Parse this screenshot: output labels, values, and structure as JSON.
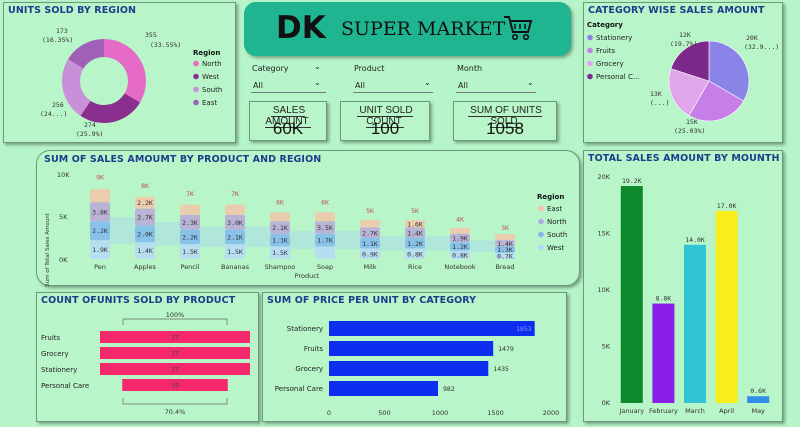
{
  "header": {
    "logo": "DK",
    "title": "SUPER MARKET",
    "cart": "cart-icon"
  },
  "slicers": [
    {
      "label": "Category",
      "value": "All"
    },
    {
      "label": "Product",
      "value": "All"
    },
    {
      "label": "Month",
      "value": "All"
    }
  ],
  "kpis": [
    {
      "label": "SALES AMOUNT",
      "value": "60K"
    },
    {
      "label": "UNIT SOLD COUNT",
      "value": "100"
    },
    {
      "label": "SUM OF UNITS SOLD",
      "value": "1058"
    }
  ],
  "region_donut": {
    "title": "UNITS SOLD BY REGION",
    "legend_title": "Region",
    "labels": {
      "north": "355",
      "north_pct": "(33.55%)",
      "west": "274",
      "west_pct": "(25.9%)",
      "south": "256",
      "south_pct": "(24...)",
      "east": "173",
      "east_pct": "(16.35%)"
    },
    "chart_data": {
      "type": "pie",
      "categories": [
        "North",
        "West",
        "South",
        "East"
      ],
      "values": [
        355,
        274,
        256,
        173
      ],
      "colors": [
        "#e56bc6",
        "#8b2f8f",
        "#c790d8",
        "#a060b8"
      ]
    }
  },
  "category_pie": {
    "title": "CATEGORY WISE SALES AMOUNT",
    "legend_title": "Category",
    "labels": {
      "stationery": "20K",
      "stationery_pct": "(32.9...)",
      "fruits": "15K",
      "fruits_pct": "(25.03%)",
      "grocery": "13K",
      "grocery_pct": "(...)",
      "personal": "12K",
      "personal_pct": "(19.7%)"
    },
    "chart_data": {
      "type": "pie",
      "categories": [
        "Stationery",
        "Fruits",
        "Grocery",
        "Personal C..."
      ],
      "values": [
        20,
        15,
        13,
        12
      ],
      "colors": [
        "#8a84e8",
        "#c67fe8",
        "#e0a6ea",
        "#7b2a8c"
      ]
    }
  },
  "ribbon": {
    "title": "SUM OF SALES AMOUMT BY PRODUCT AND REGION",
    "ylabel": "Sum of Total Sales Amount",
    "xlabel": "Product",
    "yticks": [
      "10K",
      "5K",
      "0K"
    ],
    "legend_title": "Region",
    "legend": [
      "East",
      "North",
      "South",
      "West"
    ],
    "colors": {
      "East": "#f2c6a8",
      "North": "#b8a8d8",
      "South": "#7fb8ef",
      "West": "#b6d8f7"
    },
    "chart_data": {
      "type": "bar",
      "categories": [
        "Pen",
        "Apples",
        "Pencil",
        "Bananas",
        "Shampoo",
        "Soap",
        "Milk",
        "Rice",
        "Notebook",
        "Bread"
      ],
      "totals": [
        "9K",
        "8K",
        "7K",
        "7K",
        "6K",
        "6K",
        "5K",
        "5K",
        "4K",
        "3K"
      ],
      "series": [
        {
          "name": "North",
          "values": [
            "3.8K",
            "2.7K",
            "2.3K",
            "3.0K",
            "2.1K",
            "3.5K",
            "2.7K",
            "1.4K",
            "1.9K",
            "1.4K"
          ]
        },
        {
          "name": "East",
          "values": [
            "",
            "2.2K",
            "",
            "",
            "",
            "",
            "",
            "1.6K",
            "",
            ""
          ]
        },
        {
          "name": "South",
          "values": [
            "2.2K",
            "2.0K",
            "2.2K",
            "2.1K",
            "1.1K",
            "1.7K",
            "1.1K",
            "1.2K",
            "1.2K",
            "1.3K"
          ]
        },
        {
          "name": "West",
          "values": [
            "1.9K",
            "1.4K",
            "1.5K",
            "1.5K",
            "1.5K",
            "",
            "0.9K",
            "0.8K",
            "0.8K",
            "0.7K"
          ]
        }
      ],
      "ylim": [
        0,
        10
      ]
    }
  },
  "month_bar": {
    "title": "TOTAL SALES AMOUNT BY MOUNTH",
    "yticks": [
      "20K",
      "15K",
      "10K",
      "5K",
      "0K"
    ],
    "chart_data": {
      "type": "bar",
      "categories": [
        "January",
        "February",
        "March",
        "April",
        "May"
      ],
      "values": [
        19.2,
        8.8,
        14.0,
        17.0,
        0.6
      ],
      "labels": [
        "19.2K",
        "8.8K",
        "14.0K",
        "17.0K",
        "0.6K"
      ],
      "colors": [
        "#0e8a2c",
        "#8a1fe8",
        "#33c4d4",
        "#f7ee1b",
        "#2f8fe8"
      ],
      "ylim": [
        0,
        20
      ]
    }
  },
  "funnel": {
    "title": "COUNT OFUNITS SOLD BY PRODUCT",
    "top_pct": "100%",
    "bottom_pct": "70.4%",
    "chart_data": {
      "type": "bar",
      "categories": [
        "Fruits",
        "Grocery",
        "Stationery",
        "Personal Care"
      ],
      "values": [
        27,
        27,
        27,
        19
      ],
      "color": "#f5286e"
    }
  },
  "price_bar": {
    "title": "SUM OF PRICE PER UNIT BY CATEGORY",
    "xticks": [
      "0",
      "500",
      "1000",
      "1500",
      "2000"
    ],
    "chart_data": {
      "type": "bar",
      "categories": [
        "Stationery",
        "Fruits",
        "Grocery",
        "Personal Care"
      ],
      "values": [
        1853,
        1479,
        1435,
        982
      ],
      "labels": [
        "1853",
        "1479",
        "1435",
        "982"
      ],
      "color": "#0d2df0",
      "xlim": [
        0,
        2000
      ]
    }
  }
}
